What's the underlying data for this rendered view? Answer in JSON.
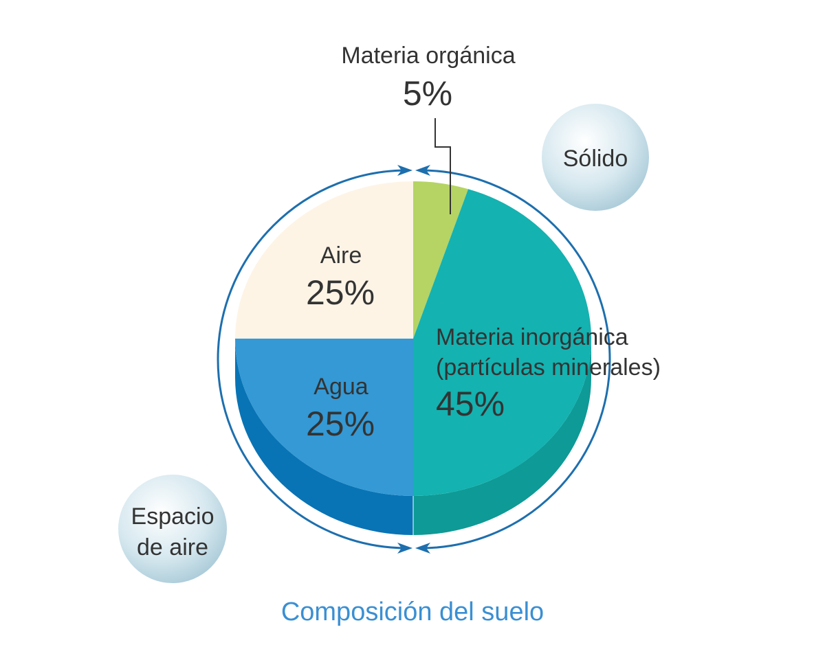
{
  "chart_data": {
    "type": "pie",
    "title": "Composición del suelo",
    "slices": [
      {
        "label": "Materia orgánica",
        "value": 5,
        "value_label": "5%",
        "color": "#b5d464",
        "side_color": "#9bbd4c"
      },
      {
        "label": "Materia inorgánica (partículas minerales)",
        "label_lines": [
          "Materia inorgánica",
          "(partículas minerales)"
        ],
        "value": 45,
        "value_label": "45%",
        "color": "#14b2b0",
        "side_color": "#0e9a96"
      },
      {
        "label": "Agua",
        "value": 25,
        "value_label": "25%",
        "color": "#3499d5",
        "side_color": "#0874b5"
      },
      {
        "label": "Aire",
        "value": 25,
        "value_label": "25%",
        "color": "#fdf4e6",
        "side_color": "#eadfcc"
      }
    ],
    "groups": [
      {
        "label": "Sólido",
        "members": [
          "Materia orgánica",
          "Materia inorgánica (partículas minerales)"
        ]
      },
      {
        "label_lines": [
          "Espacio",
          "de aire"
        ],
        "label": "Espacio de aire",
        "members": [
          "Agua",
          "Aire"
        ]
      }
    ],
    "colors": {
      "arrow": "#1d6fae",
      "title": "#3a8fd3",
      "bubble": "#cfe3ec",
      "text": "#333333"
    }
  }
}
